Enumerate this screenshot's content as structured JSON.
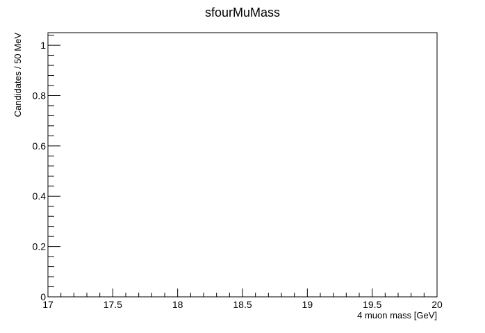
{
  "chart_data": {
    "type": "bar",
    "title": "sfourMuMass",
    "xlabel": "4 muon mass [GeV]",
    "ylabel": "Candidates / 50 MeV",
    "xlim": [
      17,
      20
    ],
    "ylim": [
      0,
      1.05
    ],
    "x_ticks_major": [
      17,
      17.5,
      18,
      18.5,
      19,
      19.5,
      20
    ],
    "x_tick_labels": [
      "17",
      "17.5",
      "18",
      "18.5",
      "19",
      "19.5",
      "20"
    ],
    "x_minor_step": 0.1,
    "y_ticks_major": [
      0,
      0.2,
      0.4,
      0.6,
      0.8,
      1
    ],
    "y_tick_labels": [
      "0",
      "0.2",
      "0.4",
      "0.6",
      "0.8",
      "1"
    ],
    "y_minor_step": 0.04,
    "grid": false,
    "legend": "none",
    "bin_width": 0.05,
    "series": [
      {
        "values": []
      }
    ],
    "colors": {
      "frame": "#000000",
      "background": "#ffffff"
    }
  }
}
